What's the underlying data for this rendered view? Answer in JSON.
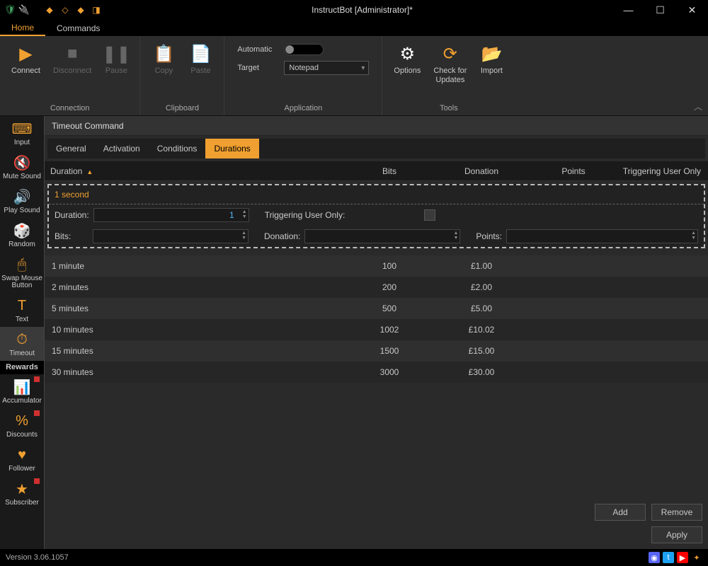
{
  "window": {
    "title": "InstructBot [Administrator]*"
  },
  "menu": {
    "tabs": [
      "Home",
      "Commands"
    ],
    "active": 0
  },
  "ribbon": {
    "connection": {
      "label": "Connection",
      "connect": "Connect",
      "disconnect": "Disconnect",
      "pause": "Pause"
    },
    "clipboard": {
      "label": "Clipboard",
      "copy": "Copy",
      "paste": "Paste"
    },
    "application": {
      "label": "Application",
      "automatic": "Automatic",
      "target": "Target",
      "target_value": "Notepad"
    },
    "tools": {
      "label": "Tools",
      "options": "Options",
      "check": "Check for\nUpdates",
      "import": "Import"
    }
  },
  "sidebar": {
    "items": [
      {
        "label": "Input",
        "icon": "⌨"
      },
      {
        "label": "Mute Sound",
        "icon": "🔇"
      },
      {
        "label": "Play Sound",
        "icon": "🔊"
      },
      {
        "label": "Random",
        "icon": "🎲"
      },
      {
        "label": "Swap Mouse Button",
        "icon": "🖱"
      },
      {
        "label": "Text",
        "icon": "T"
      },
      {
        "label": "Timeout",
        "icon": "⏱",
        "active": true
      }
    ],
    "heading": "Rewards",
    "rewards": [
      {
        "label": "Accumulator",
        "icon": "📊",
        "dot": true
      },
      {
        "label": "Discounts",
        "icon": "%",
        "dot": true
      },
      {
        "label": "Follower",
        "icon": "♥"
      },
      {
        "label": "Subscriber",
        "icon": "★",
        "dot": true
      }
    ]
  },
  "content": {
    "title": "Timeout Command",
    "tabs": [
      "General",
      "Activation",
      "Conditions",
      "Durations"
    ],
    "active_tab": 3,
    "columns": {
      "duration": "Duration",
      "bits": "Bits",
      "donation": "Donation",
      "points": "Points",
      "triggering": "Triggering User Only"
    },
    "edit": {
      "title": "1 second",
      "duration_lbl": "Duration:",
      "duration_val": "1",
      "trig_lbl": "Triggering User Only:",
      "bits_lbl": "Bits:",
      "donation_lbl": "Donation:",
      "points_lbl": "Points:"
    },
    "rows": [
      {
        "duration": "1 minute",
        "bits": "100",
        "donation": "£1.00"
      },
      {
        "duration": "2 minutes",
        "bits": "200",
        "donation": "£2.00"
      },
      {
        "duration": "5 minutes",
        "bits": "500",
        "donation": "£5.00"
      },
      {
        "duration": "10 minutes",
        "bits": "1002",
        "donation": "£10.02"
      },
      {
        "duration": "15 minutes",
        "bits": "1500",
        "donation": "£15.00"
      },
      {
        "duration": "30 minutes",
        "bits": "3000",
        "donation": "£30.00"
      }
    ],
    "buttons": {
      "add": "Add",
      "remove": "Remove",
      "apply": "Apply"
    }
  },
  "status": {
    "version": "Version 3.06.1057"
  },
  "colors": {
    "accent": "#f0a030"
  }
}
